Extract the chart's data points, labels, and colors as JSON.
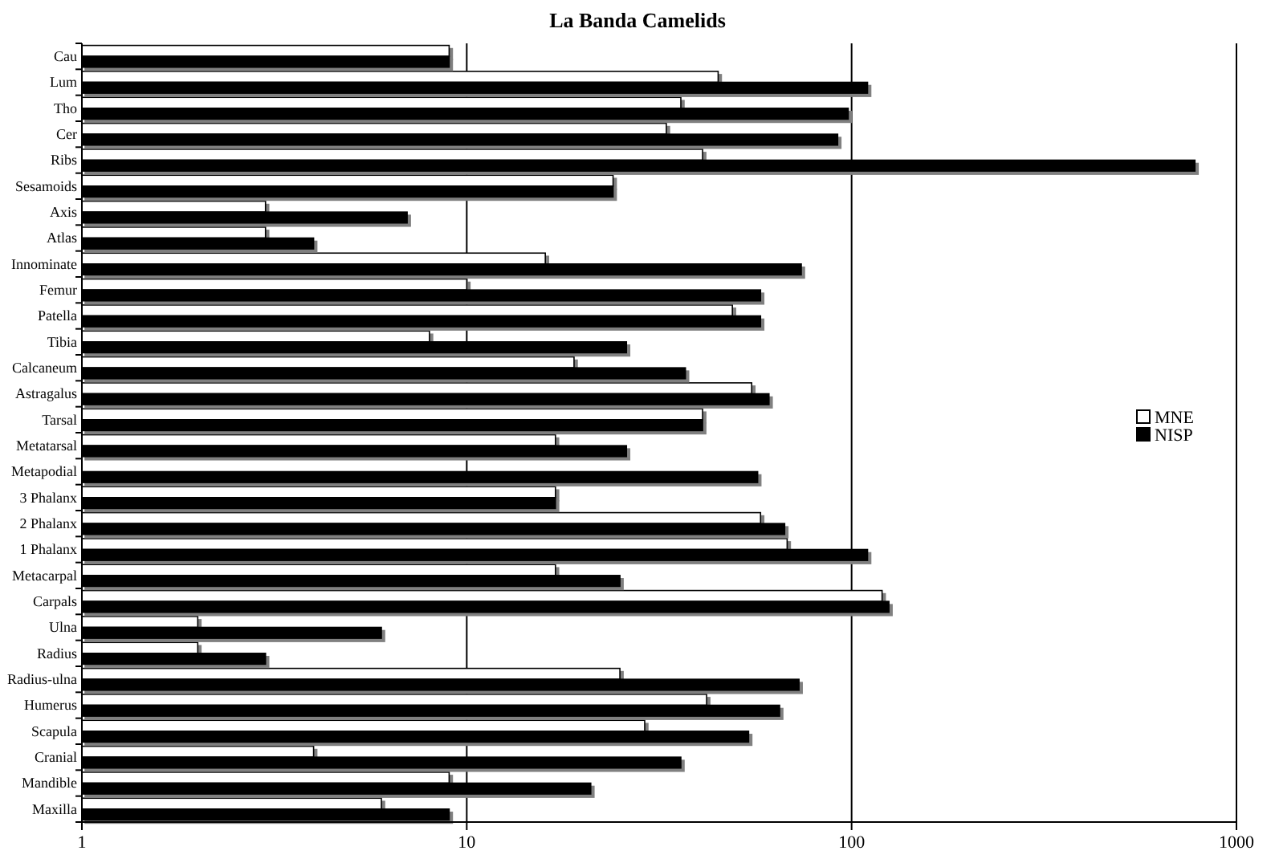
{
  "chart_data": {
    "type": "bar",
    "title": "La Banda Camelids",
    "orientation": "horizontal",
    "log": "x",
    "grid": "x",
    "legend": "right",
    "categories": [
      "Cau",
      "Lum",
      "Tho",
      "Cer",
      "Ribs",
      "Sesamoids",
      "Axis",
      "Atlas",
      "Innominate",
      "Femur",
      "Patella",
      "Tibia",
      "Calcaneum",
      "Astragalus",
      "Tarsal",
      "Metatarsal",
      "Metapodial",
      "3 Phalanx",
      "2 Phalanx",
      "1 Phalanx",
      "Metacarpal",
      "Carpals",
      "Ulna",
      "Radius",
      "Radius-ulna",
      "Humerus",
      "Scapula",
      "Cranial",
      "Mandible",
      "Maxilla"
    ],
    "xlim": [
      1,
      1000
    ],
    "xticks": [
      1,
      10,
      100,
      1000
    ],
    "series": [
      {
        "name": "MNE",
        "color": "#ffffff",
        "values": [
          9,
          45,
          36,
          33,
          41,
          24,
          3,
          3,
          16,
          10,
          49,
          8,
          19,
          55,
          41,
          17,
          null,
          17,
          58,
          68,
          17,
          120,
          2,
          2,
          25,
          42,
          29,
          4,
          9,
          6
        ]
      },
      {
        "name": "NISP",
        "color": "#000000",
        "values": [
          9,
          110,
          98,
          92,
          780,
          24,
          7,
          4,
          74,
          58,
          58,
          26,
          37,
          61,
          41,
          26,
          57,
          17,
          67,
          110,
          25,
          125,
          6,
          3,
          73,
          65,
          54,
          36,
          21,
          9
        ]
      }
    ]
  }
}
